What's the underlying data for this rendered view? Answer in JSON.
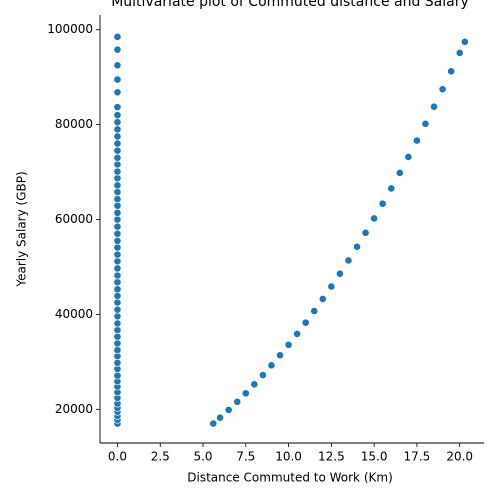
{
  "chart_data": {
    "type": "scatter",
    "title": "Multivariate plot of Commuted distance and Salary",
    "xlabel": "Distance Commuted to Work (Km)",
    "ylabel": "Yearly Salary (GBP)",
    "color": "#1f77b4",
    "x": [
      0,
      0,
      0,
      0,
      0,
      0,
      0,
      0,
      0,
      0,
      0,
      0,
      0,
      0,
      0,
      0,
      0,
      0,
      0,
      0,
      0,
      0,
      0,
      0,
      0,
      0,
      0,
      0,
      0,
      0,
      0,
      0,
      0,
      0,
      0,
      0,
      0,
      0,
      0,
      0,
      0,
      0,
      0,
      0,
      0,
      0,
      0,
      0,
      0,
      0,
      0,
      0,
      0,
      0,
      0,
      5.6,
      6.0,
      6.5,
      7.0,
      7.5,
      8.0,
      8.5,
      9.0,
      9.5,
      10,
      10.5,
      11,
      11.5,
      12,
      12.5,
      13,
      13.5,
      14,
      14.5,
      15,
      15.5,
      16,
      16.5,
      17,
      17.5,
      18,
      18.5,
      19,
      19.5,
      20,
      20.3
    ],
    "y": [
      17000,
      17800,
      18600,
      19500,
      20300,
      21200,
      22400,
      23600,
      24800,
      25900,
      27100,
      28500,
      29800,
      31200,
      32500,
      33900,
      35300,
      36700,
      38100,
      39600,
      41000,
      42500,
      43900,
      45300,
      46800,
      48200,
      49700,
      51200,
      52600,
      54100,
      55500,
      57000,
      58500,
      60000,
      61400,
      62900,
      64300,
      65800,
      67200,
      68700,
      70100,
      71600,
      73000,
      74500,
      76000,
      77500,
      79000,
      80500,
      82000,
      83700,
      86800,
      89500,
      92500,
      95800,
      98500,
      16994,
      18240,
      19871,
      21585,
      23381,
      25260,
      27221,
      29265,
      31391,
      33600,
      35891,
      38265,
      40721,
      43260,
      45881,
      48585,
      51371,
      54240,
      57191,
      60225,
      63341,
      66540,
      69821,
      73185,
      76631,
      80160,
      83771,
      87465,
      91241,
      95100,
      97455
    ],
    "xlim": [
      -1.02,
      21.42
    ],
    "ylim": [
      12900,
      103100
    ],
    "xticks": [
      {
        "value": 0,
        "label": "0.0"
      },
      2.5,
      {
        "value": 5,
        "label": "5.0"
      },
      7.5,
      {
        "value": 10,
        "label": "10.0"
      },
      12.5,
      {
        "value": 15,
        "label": "15.0"
      },
      17.5,
      {
        "value": 20,
        "label": "20.0"
      }
    ],
    "yticks": [
      20000,
      40000,
      60000,
      80000,
      100000
    ]
  }
}
